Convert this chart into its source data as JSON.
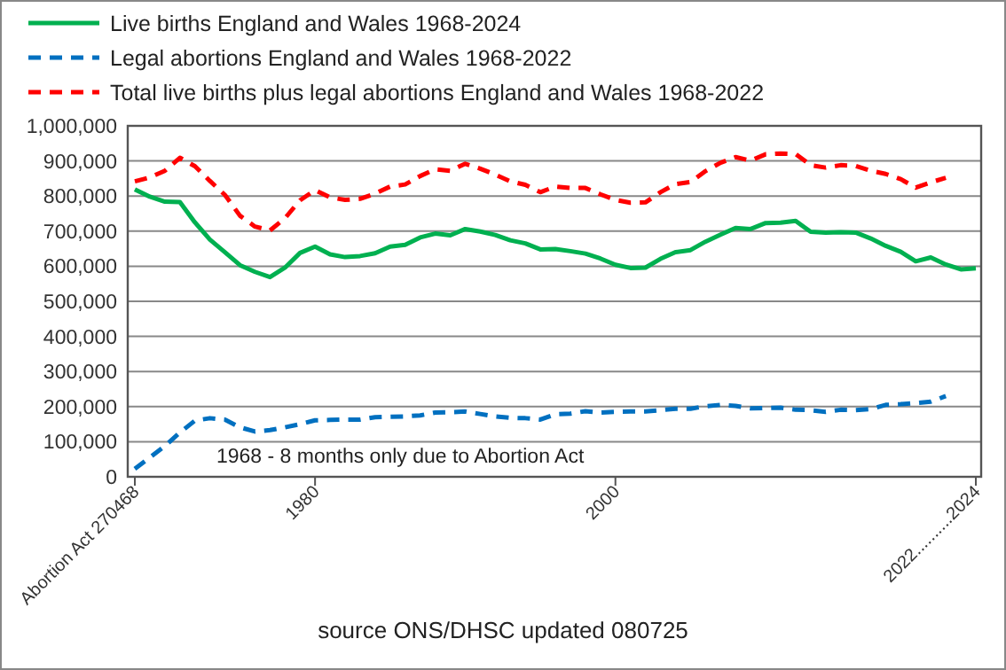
{
  "chart_data": {
    "type": "line",
    "categories": [
      "Abortion Act 270468",
      null,
      null,
      null,
      null,
      null,
      null,
      null,
      null,
      null,
      null,
      null,
      "1980",
      null,
      null,
      null,
      null,
      null,
      null,
      null,
      null,
      null,
      null,
      null,
      null,
      null,
      null,
      null,
      null,
      null,
      null,
      null,
      "2000",
      null,
      null,
      null,
      null,
      null,
      null,
      null,
      null,
      null,
      null,
      null,
      null,
      null,
      null,
      null,
      null,
      null,
      null,
      null,
      null,
      null,
      null,
      null,
      "2022..........2024"
    ],
    "series": [
      {
        "name": "Live births England and Wales 1968-2024",
        "color": "#00b050",
        "line_style": "solid",
        "values": [
          819000,
          798000,
          784000,
          783000,
          725000,
          676000,
          640000,
          603000,
          584000,
          569000,
          596000,
          638000,
          656000,
          634000,
          626000,
          629000,
          637000,
          656000,
          661000,
          682000,
          693000,
          688000,
          706000,
          699000,
          689000,
          674000,
          665000,
          648000,
          649000,
          643000,
          636000,
          622000,
          604000,
          595000,
          596000,
          621000,
          640000,
          646000,
          670000,
          690000,
          709000,
          706000,
          723000,
          724000,
          729000,
          698000,
          696000,
          697000,
          696000,
          679000,
          658000,
          641000,
          614000,
          625000,
          605000,
          591000,
          594000
        ]
      },
      {
        "name": "Legal abortions England and Wales 1968-2022",
        "color": "#0070c0",
        "line_style": "dashed",
        "values": [
          23000,
          55000,
          88000,
          126000,
          160000,
          167000,
          163000,
          141000,
          129000,
          133000,
          141000,
          150000,
          161000,
          162000,
          163000,
          163000,
          170000,
          171000,
          172000,
          175000,
          183000,
          184000,
          186000,
          179000,
          172000,
          168000,
          167000,
          163000,
          178000,
          180000,
          187000,
          183000,
          185000,
          186000,
          186000,
          190000,
          194000,
          194000,
          201000,
          205000,
          202000,
          195000,
          196000,
          197000,
          191000,
          190000,
          185000,
          191000,
          190000,
          193000,
          205000,
          207000,
          210000,
          214000,
          230000,
          null,
          null
        ]
      },
      {
        "name": "Total live births plus legal abortions England and Wales 1968-2022",
        "color": "#ff0000",
        "line_style": "dashed",
        "values": [
          842000,
          853000,
          872000,
          909000,
          885000,
          843000,
          803000,
          744000,
          713000,
          702000,
          737000,
          788000,
          817000,
          796000,
          789000,
          792000,
          807000,
          827000,
          833000,
          857000,
          876000,
          872000,
          892000,
          878000,
          861000,
          842000,
          832000,
          811000,
          827000,
          823000,
          823000,
          805000,
          789000,
          781000,
          782000,
          811000,
          834000,
          840000,
          871000,
          895000,
          911000,
          901000,
          919000,
          921000,
          920000,
          888000,
          881000,
          888000,
          886000,
          872000,
          863000,
          848000,
          824000,
          839000,
          852000,
          null,
          null
        ]
      }
    ],
    "ylim": [
      0,
      1000000
    ],
    "yticks": [
      {
        "value": 0,
        "label": "0"
      },
      {
        "value": 100000,
        "label": "100,000"
      },
      {
        "value": 200000,
        "label": "200,000"
      },
      {
        "value": 300000,
        "label": "300,000"
      },
      {
        "value": 400000,
        "label": "400,000"
      },
      {
        "value": 500000,
        "label": "500,000"
      },
      {
        "value": 600000,
        "label": "600,000"
      },
      {
        "value": 700000,
        "label": "700,000"
      },
      {
        "value": 800000,
        "label": "800,000"
      },
      {
        "value": 900000,
        "label": "900,000"
      },
      {
        "value": 1000000,
        "label": "1,000,000"
      }
    ],
    "grid": "y",
    "legend": "top",
    "marker": "none",
    "annotations": [
      "1968 - 8 months only due to Abortion Act",
      "source ONS/DHSC updated 080725"
    ]
  }
}
